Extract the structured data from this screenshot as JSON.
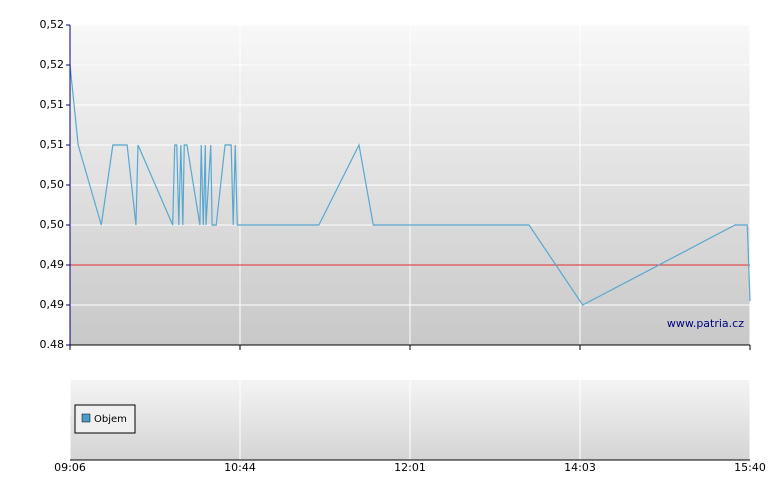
{
  "chart_data": {
    "type": "line",
    "watermark": "www.patria.cz",
    "legend": "Objem",
    "legend_color": "#4a9ccb",
    "reference_line": 0.49,
    "reference_color": "#e03030",
    "xlim": [
      0,
      100
    ],
    "xticks": [
      {
        "value": 0,
        "label": "09:06"
      },
      {
        "value": 25,
        "label": "10:44"
      },
      {
        "value": 50,
        "label": "12:01"
      },
      {
        "value": 75,
        "label": "14:03"
      },
      {
        "value": 100,
        "label": "15:40"
      }
    ],
    "ylim": [
      0.48,
      0.52
    ],
    "yticks": [
      {
        "value": 0.48,
        "label": "0.48"
      },
      {
        "value": 0.485,
        "label": "0,49"
      },
      {
        "value": 0.49,
        "label": "0,49"
      },
      {
        "value": 0.495,
        "label": "0,50"
      },
      {
        "value": 0.5,
        "label": "0,50"
      },
      {
        "value": 0.505,
        "label": "0,51"
      },
      {
        "value": 0.51,
        "label": "0,51"
      },
      {
        "value": 0.515,
        "label": "0,52"
      },
      {
        "value": 0.52,
        "label": "0,52"
      }
    ],
    "grid": true,
    "series": [
      {
        "color": "#5aa8d0",
        "x": [
          0,
          1.2,
          4.6,
          6.3,
          8.4,
          9.7,
          10.0,
          15.1,
          15.4,
          15.7,
          16.0,
          16.3,
          16.6,
          16.8,
          17.2,
          19.1,
          19.3,
          19.6,
          19.9,
          20.0,
          20.7,
          20.9,
          21.5,
          22.8,
          23.7,
          24.0,
          24.3,
          24.6,
          36.6,
          42.5,
          44.6,
          67.5,
          75.4,
          97.8,
          99.6,
          100
        ],
        "values": [
          0.515,
          0.505,
          0.495,
          0.505,
          0.505,
          0.495,
          0.505,
          0.495,
          0.505,
          0.505,
          0.495,
          0.505,
          0.495,
          0.505,
          0.505,
          0.495,
          0.505,
          0.495,
          0.505,
          0.495,
          0.505,
          0.495,
          0.495,
          0.505,
          0.505,
          0.495,
          0.505,
          0.495,
          0.495,
          0.505,
          0.495,
          0.495,
          0.485,
          0.495,
          0.495,
          0.4855
        ]
      }
    ]
  }
}
